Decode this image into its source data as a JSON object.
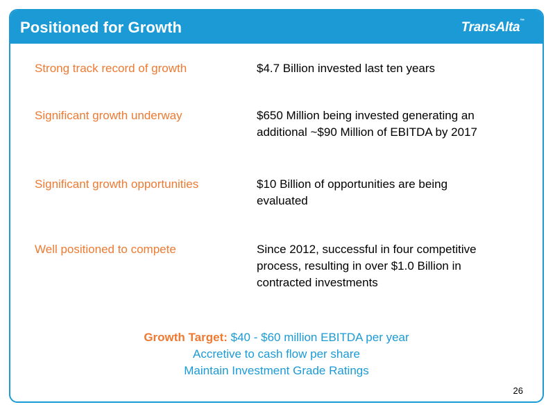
{
  "slide": {
    "title": "Positioned for Growth",
    "logo_text": "TransAlta",
    "logo_mark": "™",
    "page_number": "26"
  },
  "rows": [
    {
      "label": "Strong track record of growth",
      "lines": [
        "$4.7 Billion invested last ten years"
      ]
    },
    {
      "label": "Significant growth underway",
      "lines": [
        "$650 Million being invested generating an",
        "additional ~$90 Million of EBITDA by 2017"
      ]
    },
    {
      "label": "Significant growth opportunities",
      "lines": [
        "$10 Billion of opportunities are being",
        "evaluated"
      ]
    },
    {
      "label": "Well positioned to compete",
      "lines": [
        "Since 2012, successful in four competitive",
        "process, resulting in over $1.0 Billion in",
        "contracted investments"
      ]
    }
  ],
  "summary": {
    "target_label": "Growth Target:",
    "target_value": "$40 - $60 million EBITDA per year",
    "line2": "Accretive to cash flow per share",
    "line3": "Maintain Investment Grade Ratings"
  },
  "colors": {
    "brand_blue": "#1b9ad6",
    "accent_orange": "#ee7a32",
    "text_black": "#000000"
  }
}
